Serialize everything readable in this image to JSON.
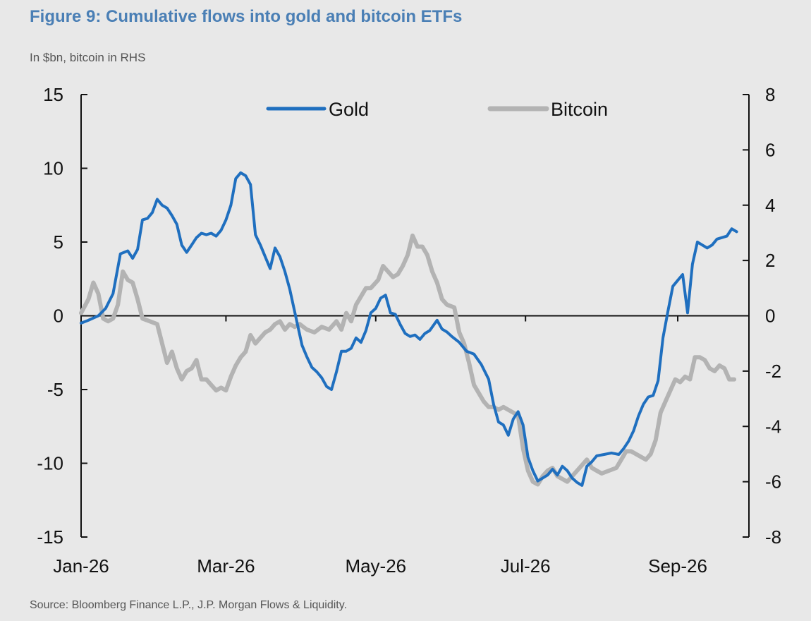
{
  "header": {
    "title": "Figure 9: Cumulative flows into gold and bitcoin ETFs",
    "subtitle": "In $bn, bitcoin in RHS"
  },
  "footer": {
    "source": "Source: Bloomberg Finance L.P., J.P. Morgan Flows & Liquidity."
  },
  "chart_data": {
    "type": "line",
    "title": "Figure 9: Cumulative flows into gold and bitcoin ETFs",
    "subtitle": "In $bn, bitcoin in RHS",
    "x_axis": {
      "type": "date",
      "range": [
        "2026-01-01",
        "2026-09-30"
      ],
      "tick_labels": [
        "Jan-26",
        "Mar-26",
        "May-26",
        "Jul-26",
        "Sep-26"
      ],
      "tick_dates": [
        "2026-01-01",
        "2026-03-01",
        "2026-05-01",
        "2026-07-01",
        "2026-09-01"
      ]
    },
    "y_left": {
      "range": [
        -15,
        15
      ],
      "ticks": [
        15,
        10,
        5,
        0,
        -5,
        -10,
        -15
      ],
      "tick_labels": [
        "15",
        "10",
        "5",
        "0",
        "-5",
        "-10",
        "-15"
      ]
    },
    "y_right": {
      "range": [
        -8,
        8
      ],
      "ticks": [
        8,
        6,
        4,
        2,
        0,
        -2,
        -4,
        -6,
        -8
      ],
      "tick_labels": [
        "8",
        "6",
        "4",
        "2",
        "0",
        "-2",
        "-4",
        "-6",
        "-8"
      ]
    },
    "zero_line": true,
    "grid": false,
    "legend": {
      "position": "top-center"
    },
    "series": [
      {
        "name": "Gold",
        "axis": "left",
        "color": "#1f6fbf",
        "points": [
          [
            "2026-01-01",
            -0.5
          ],
          [
            "2026-01-04",
            -0.3
          ],
          [
            "2026-01-08",
            0.0
          ],
          [
            "2026-01-11",
            0.5
          ],
          [
            "2026-01-14",
            1.5
          ],
          [
            "2026-01-17",
            4.2
          ],
          [
            "2026-01-20",
            4.4
          ],
          [
            "2026-01-22",
            3.9
          ],
          [
            "2026-01-24",
            4.5
          ],
          [
            "2026-01-26",
            6.5
          ],
          [
            "2026-01-28",
            6.6
          ],
          [
            "2026-01-30",
            7.0
          ],
          [
            "2026-02-01",
            7.9
          ],
          [
            "2026-02-03",
            7.5
          ],
          [
            "2026-02-05",
            7.3
          ],
          [
            "2026-02-07",
            6.8
          ],
          [
            "2026-02-09",
            6.2
          ],
          [
            "2026-02-11",
            4.8
          ],
          [
            "2026-02-13",
            4.3
          ],
          [
            "2026-02-15",
            4.8
          ],
          [
            "2026-02-17",
            5.3
          ],
          [
            "2026-02-19",
            5.6
          ],
          [
            "2026-02-21",
            5.5
          ],
          [
            "2026-02-23",
            5.6
          ],
          [
            "2026-02-25",
            5.4
          ],
          [
            "2026-02-27",
            5.8
          ],
          [
            "2026-03-01",
            6.5
          ],
          [
            "2026-03-03",
            7.5
          ],
          [
            "2026-03-05",
            9.3
          ],
          [
            "2026-03-07",
            9.7
          ],
          [
            "2026-03-09",
            9.5
          ],
          [
            "2026-03-11",
            8.9
          ],
          [
            "2026-03-13",
            5.5
          ],
          [
            "2026-03-15",
            4.8
          ],
          [
            "2026-03-17",
            4.0
          ],
          [
            "2026-03-19",
            3.2
          ],
          [
            "2026-03-21",
            4.6
          ],
          [
            "2026-03-23",
            4.0
          ],
          [
            "2026-03-25",
            3.0
          ],
          [
            "2026-03-27",
            1.8
          ],
          [
            "2026-03-30",
            -0.5
          ],
          [
            "2026-04-01",
            -2.0
          ],
          [
            "2026-04-03",
            -2.8
          ],
          [
            "2026-04-05",
            -3.5
          ],
          [
            "2026-04-07",
            -3.8
          ],
          [
            "2026-04-09",
            -4.2
          ],
          [
            "2026-04-11",
            -4.8
          ],
          [
            "2026-04-13",
            -5.0
          ],
          [
            "2026-04-15",
            -3.8
          ],
          [
            "2026-04-17",
            -2.4
          ],
          [
            "2026-04-19",
            -2.4
          ],
          [
            "2026-04-21",
            -2.2
          ],
          [
            "2026-04-23",
            -1.5
          ],
          [
            "2026-04-25",
            -1.8
          ],
          [
            "2026-04-27",
            -1.0
          ],
          [
            "2026-04-29",
            0.2
          ],
          [
            "2026-05-01",
            0.5
          ],
          [
            "2026-05-03",
            1.2
          ],
          [
            "2026-05-05",
            1.4
          ],
          [
            "2026-05-07",
            0.2
          ],
          [
            "2026-05-09",
            0.1
          ],
          [
            "2026-05-11",
            -0.6
          ],
          [
            "2026-05-13",
            -1.2
          ],
          [
            "2026-05-15",
            -1.4
          ],
          [
            "2026-05-17",
            -1.3
          ],
          [
            "2026-05-19",
            -1.6
          ],
          [
            "2026-05-21",
            -1.2
          ],
          [
            "2026-05-23",
            -1.0
          ],
          [
            "2026-05-26",
            -0.3
          ],
          [
            "2026-05-28",
            -0.9
          ],
          [
            "2026-05-30",
            -1.1
          ],
          [
            "2026-06-01",
            -1.4
          ],
          [
            "2026-06-04",
            -1.8
          ],
          [
            "2026-06-07",
            -2.4
          ],
          [
            "2026-06-10",
            -2.6
          ],
          [
            "2026-06-13",
            -3.3
          ],
          [
            "2026-06-16",
            -4.3
          ],
          [
            "2026-06-18",
            -6.0
          ],
          [
            "2026-06-20",
            -7.2
          ],
          [
            "2026-06-22",
            -7.4
          ],
          [
            "2026-06-24",
            -8.1
          ],
          [
            "2026-06-26",
            -7.0
          ],
          [
            "2026-06-28",
            -6.5
          ],
          [
            "2026-06-30",
            -7.4
          ],
          [
            "2026-07-02",
            -9.6
          ],
          [
            "2026-07-04",
            -10.5
          ],
          [
            "2026-07-06",
            -11.2
          ],
          [
            "2026-07-08",
            -11.0
          ],
          [
            "2026-07-10",
            -10.8
          ],
          [
            "2026-07-12",
            -10.4
          ],
          [
            "2026-07-14",
            -10.8
          ],
          [
            "2026-07-16",
            -10.2
          ],
          [
            "2026-07-18",
            -10.5
          ],
          [
            "2026-07-20",
            -11.0
          ],
          [
            "2026-07-22",
            -11.3
          ],
          [
            "2026-07-24",
            -11.5
          ],
          [
            "2026-07-26",
            -10.2
          ],
          [
            "2026-07-28",
            -9.9
          ],
          [
            "2026-07-30",
            -9.5
          ],
          [
            "2026-08-02",
            -9.4
          ],
          [
            "2026-08-05",
            -9.3
          ],
          [
            "2026-08-08",
            -9.4
          ],
          [
            "2026-08-10",
            -9.0
          ],
          [
            "2026-08-12",
            -8.5
          ],
          [
            "2026-08-14",
            -7.8
          ],
          [
            "2026-08-16",
            -6.8
          ],
          [
            "2026-08-18",
            -6.0
          ],
          [
            "2026-08-20",
            -5.5
          ],
          [
            "2026-08-22",
            -5.4
          ],
          [
            "2026-08-24",
            -4.4
          ],
          [
            "2026-08-26",
            -1.5
          ],
          [
            "2026-08-28",
            0.3
          ],
          [
            "2026-08-30",
            2.0
          ],
          [
            "2026-09-01",
            2.4
          ],
          [
            "2026-09-03",
            2.8
          ],
          [
            "2026-09-05",
            0.2
          ],
          [
            "2026-09-07",
            3.5
          ],
          [
            "2026-09-09",
            5.0
          ],
          [
            "2026-09-11",
            4.8
          ],
          [
            "2026-09-13",
            4.6
          ],
          [
            "2026-09-15",
            4.8
          ],
          [
            "2026-09-17",
            5.2
          ],
          [
            "2026-09-19",
            5.3
          ],
          [
            "2026-09-21",
            5.4
          ],
          [
            "2026-09-23",
            5.9
          ],
          [
            "2026-09-25",
            5.7
          ]
        ]
      },
      {
        "name": "Bitcoin",
        "axis": "right",
        "color": "#b3b3b3",
        "points": [
          [
            "2026-01-01",
            0.1
          ],
          [
            "2026-01-04",
            0.6
          ],
          [
            "2026-01-06",
            1.2
          ],
          [
            "2026-01-08",
            0.8
          ],
          [
            "2026-01-10",
            -0.1
          ],
          [
            "2026-01-12",
            -0.2
          ],
          [
            "2026-01-14",
            -0.1
          ],
          [
            "2026-01-16",
            0.4
          ],
          [
            "2026-01-18",
            1.6
          ],
          [
            "2026-01-20",
            1.3
          ],
          [
            "2026-01-22",
            1.2
          ],
          [
            "2026-01-24",
            0.6
          ],
          [
            "2026-01-26",
            -0.1
          ],
          [
            "2026-01-29",
            -0.2
          ],
          [
            "2026-02-01",
            -0.3
          ],
          [
            "2026-02-03",
            -1.0
          ],
          [
            "2026-02-05",
            -1.7
          ],
          [
            "2026-02-07",
            -1.3
          ],
          [
            "2026-02-09",
            -1.9
          ],
          [
            "2026-02-11",
            -2.3
          ],
          [
            "2026-02-13",
            -2.0
          ],
          [
            "2026-02-15",
            -1.9
          ],
          [
            "2026-02-17",
            -1.6
          ],
          [
            "2026-02-19",
            -2.3
          ],
          [
            "2026-02-21",
            -2.3
          ],
          [
            "2026-02-23",
            -2.5
          ],
          [
            "2026-02-25",
            -2.7
          ],
          [
            "2026-02-27",
            -2.6
          ],
          [
            "2026-03-01",
            -2.7
          ],
          [
            "2026-03-03",
            -2.2
          ],
          [
            "2026-03-05",
            -1.8
          ],
          [
            "2026-03-07",
            -1.5
          ],
          [
            "2026-03-09",
            -1.3
          ],
          [
            "2026-03-11",
            -0.7
          ],
          [
            "2026-03-13",
            -1.0
          ],
          [
            "2026-03-15",
            -0.8
          ],
          [
            "2026-03-17",
            -0.6
          ],
          [
            "2026-03-19",
            -0.5
          ],
          [
            "2026-03-21",
            -0.3
          ],
          [
            "2026-03-23",
            -0.2
          ],
          [
            "2026-03-25",
            -0.5
          ],
          [
            "2026-03-27",
            -0.3
          ],
          [
            "2026-03-29",
            -0.4
          ],
          [
            "2026-03-31",
            -0.3
          ],
          [
            "2026-04-03",
            -0.5
          ],
          [
            "2026-04-06",
            -0.6
          ],
          [
            "2026-04-09",
            -0.4
          ],
          [
            "2026-04-12",
            -0.5
          ],
          [
            "2026-04-15",
            -0.2
          ],
          [
            "2026-04-17",
            -0.5
          ],
          [
            "2026-04-19",
            0.1
          ],
          [
            "2026-04-21",
            -0.2
          ],
          [
            "2026-04-23",
            0.4
          ],
          [
            "2026-04-25",
            0.7
          ],
          [
            "2026-04-27",
            1.0
          ],
          [
            "2026-04-29",
            1.0
          ],
          [
            "2026-05-02",
            1.3
          ],
          [
            "2026-05-04",
            1.8
          ],
          [
            "2026-05-06",
            1.6
          ],
          [
            "2026-05-08",
            1.4
          ],
          [
            "2026-05-10",
            1.5
          ],
          [
            "2026-05-12",
            1.8
          ],
          [
            "2026-05-14",
            2.2
          ],
          [
            "2026-05-16",
            2.9
          ],
          [
            "2026-05-18",
            2.5
          ],
          [
            "2026-05-20",
            2.5
          ],
          [
            "2026-05-22",
            2.2
          ],
          [
            "2026-05-24",
            1.6
          ],
          [
            "2026-05-26",
            1.2
          ],
          [
            "2026-05-28",
            0.6
          ],
          [
            "2026-05-30",
            0.4
          ],
          [
            "2026-06-02",
            0.3
          ],
          [
            "2026-06-04",
            -0.6
          ],
          [
            "2026-06-06",
            -1.0
          ],
          [
            "2026-06-08",
            -1.7
          ],
          [
            "2026-06-10",
            -2.5
          ],
          [
            "2026-06-12",
            -2.8
          ],
          [
            "2026-06-14",
            -3.1
          ],
          [
            "2026-06-16",
            -3.3
          ],
          [
            "2026-06-18",
            -3.3
          ],
          [
            "2026-06-20",
            -3.4
          ],
          [
            "2026-06-22",
            -3.3
          ],
          [
            "2026-06-24",
            -3.4
          ],
          [
            "2026-06-26",
            -3.5
          ],
          [
            "2026-06-28",
            -3.6
          ],
          [
            "2026-06-30",
            -4.8
          ],
          [
            "2026-07-02",
            -5.6
          ],
          [
            "2026-07-04",
            -6.0
          ],
          [
            "2026-07-06",
            -6.1
          ],
          [
            "2026-07-08",
            -5.8
          ],
          [
            "2026-07-10",
            -5.6
          ],
          [
            "2026-07-12",
            -5.5
          ],
          [
            "2026-07-14",
            -5.8
          ],
          [
            "2026-07-16",
            -5.9
          ],
          [
            "2026-07-18",
            -6.0
          ],
          [
            "2026-07-20",
            -5.8
          ],
          [
            "2026-07-22",
            -5.6
          ],
          [
            "2026-07-24",
            -5.4
          ],
          [
            "2026-07-26",
            -5.2
          ],
          [
            "2026-07-28",
            -5.5
          ],
          [
            "2026-07-30",
            -5.6
          ],
          [
            "2026-08-01",
            -5.7
          ],
          [
            "2026-08-04",
            -5.6
          ],
          [
            "2026-08-07",
            -5.5
          ],
          [
            "2026-08-09",
            -5.2
          ],
          [
            "2026-08-11",
            -4.9
          ],
          [
            "2026-08-13",
            -4.9
          ],
          [
            "2026-08-15",
            -5.0
          ],
          [
            "2026-08-17",
            -5.1
          ],
          [
            "2026-08-19",
            -5.2
          ],
          [
            "2026-08-21",
            -5.0
          ],
          [
            "2026-08-23",
            -4.5
          ],
          [
            "2026-08-25",
            -3.5
          ],
          [
            "2026-08-27",
            -3.1
          ],
          [
            "2026-08-29",
            -2.7
          ],
          [
            "2026-08-31",
            -2.3
          ],
          [
            "2026-09-02",
            -2.4
          ],
          [
            "2026-09-04",
            -2.2
          ],
          [
            "2026-09-06",
            -2.3
          ],
          [
            "2026-09-08",
            -1.5
          ],
          [
            "2026-09-10",
            -1.5
          ],
          [
            "2026-09-12",
            -1.6
          ],
          [
            "2026-09-14",
            -1.9
          ],
          [
            "2026-09-16",
            -2.0
          ],
          [
            "2026-09-18",
            -1.8
          ],
          [
            "2026-09-20",
            -1.9
          ],
          [
            "2026-09-22",
            -2.3
          ],
          [
            "2026-09-24",
            -2.3
          ]
        ]
      }
    ]
  }
}
